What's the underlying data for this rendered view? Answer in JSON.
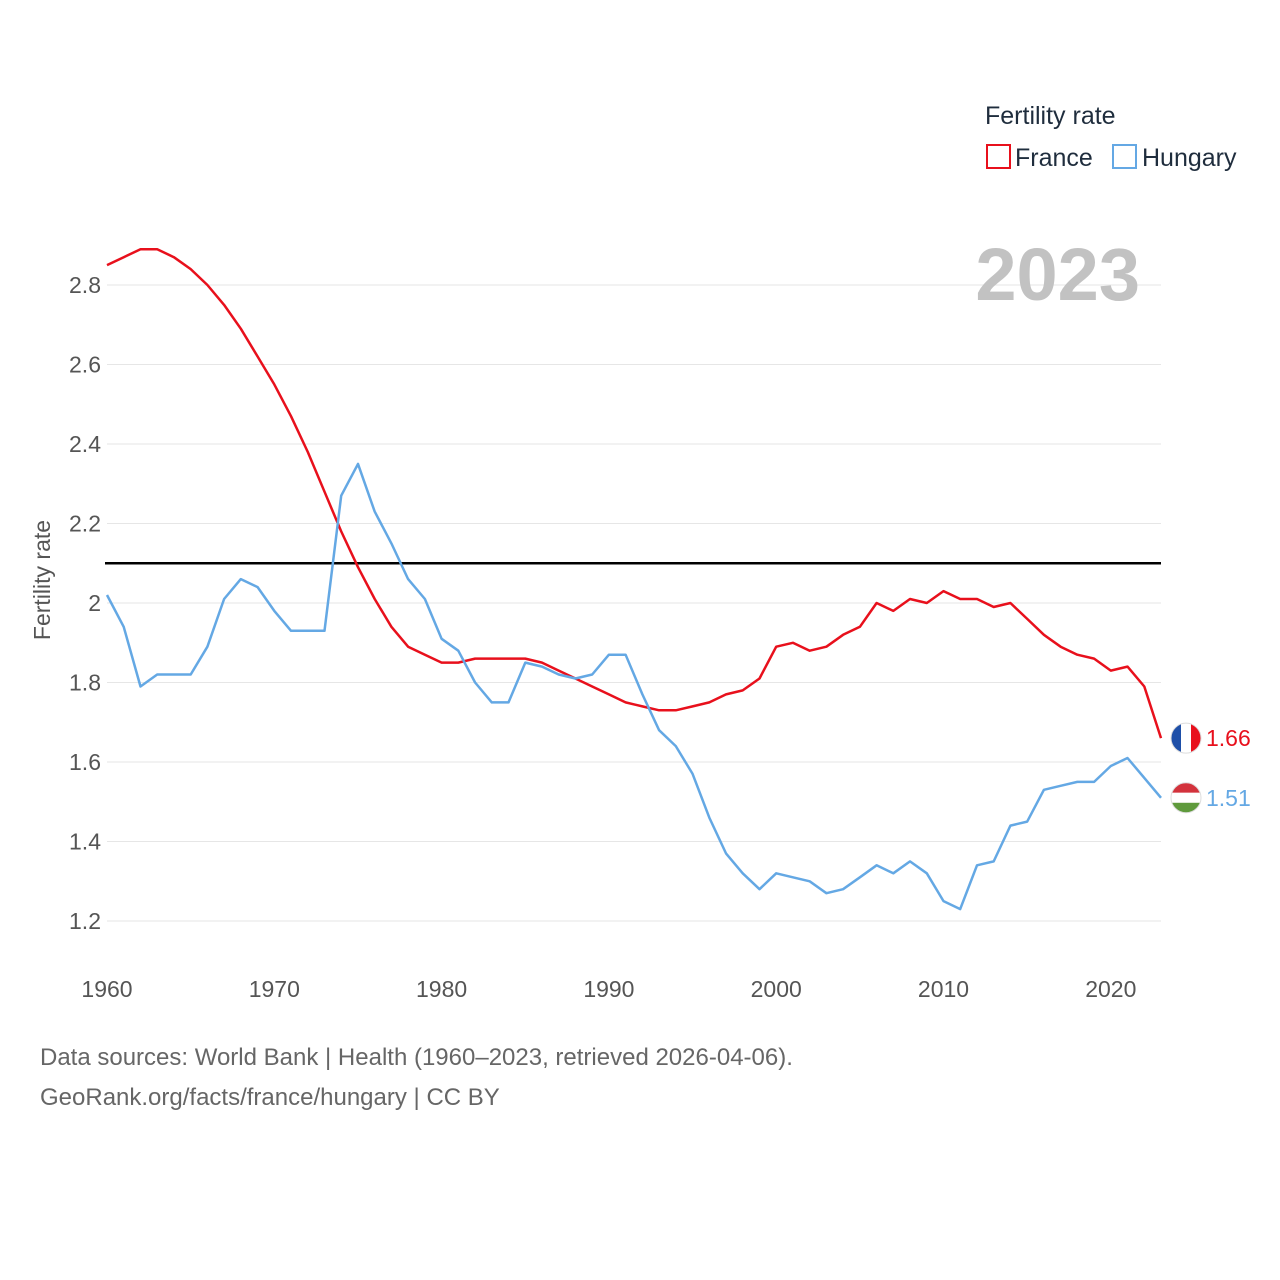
{
  "chart_data": {
    "type": "line",
    "title": "",
    "ylabel": "Fertility rate",
    "xlabel": "",
    "ylim": [
      1.1,
      2.95
    ],
    "xlim": [
      1960,
      2023
    ],
    "yticks": [
      1.2,
      1.4,
      1.6,
      1.8,
      2,
      2.2,
      2.4,
      2.6,
      2.8
    ],
    "ytick_labels": [
      "1.2",
      "1.4",
      "1.6",
      "1.8",
      "2",
      "2.2",
      "2.4",
      "2.6",
      "2.8"
    ],
    "xticks": [
      1960,
      1970,
      1980,
      1990,
      2000,
      2010,
      2020
    ],
    "xtick_labels": [
      "1960",
      "1970",
      "1980",
      "1990",
      "2000",
      "2010",
      "2020"
    ],
    "legend_title": "Fertility rate",
    "legend_position": "top-right",
    "current_year": "2023",
    "reference_line": 2.1,
    "series": [
      {
        "name": "France",
        "color": "#e8101c",
        "flag": "france-flag",
        "end_label": "1.66",
        "x": [
          1960,
          1961,
          1962,
          1963,
          1964,
          1965,
          1966,
          1967,
          1968,
          1969,
          1970,
          1971,
          1972,
          1973,
          1974,
          1975,
          1976,
          1977,
          1978,
          1979,
          1980,
          1981,
          1982,
          1983,
          1984,
          1985,
          1986,
          1987,
          1988,
          1989,
          1990,
          1991,
          1992,
          1993,
          1994,
          1995,
          1996,
          1997,
          1998,
          1999,
          2000,
          2001,
          2002,
          2003,
          2004,
          2005,
          2006,
          2007,
          2008,
          2009,
          2010,
          2011,
          2012,
          2013,
          2014,
          2015,
          2016,
          2017,
          2018,
          2019,
          2020,
          2021,
          2022,
          2023
        ],
        "values": [
          2.85,
          2.87,
          2.89,
          2.89,
          2.87,
          2.84,
          2.8,
          2.75,
          2.69,
          2.62,
          2.55,
          2.47,
          2.38,
          2.28,
          2.18,
          2.09,
          2.01,
          1.94,
          1.89,
          1.87,
          1.85,
          1.85,
          1.86,
          1.86,
          1.86,
          1.86,
          1.85,
          1.83,
          1.81,
          1.79,
          1.77,
          1.75,
          1.74,
          1.73,
          1.73,
          1.74,
          1.75,
          1.77,
          1.78,
          1.81,
          1.89,
          1.9,
          1.88,
          1.89,
          1.92,
          1.94,
          2.0,
          1.98,
          2.01,
          2.0,
          2.03,
          2.01,
          2.01,
          1.99,
          2.0,
          1.96,
          1.92,
          1.89,
          1.87,
          1.86,
          1.83,
          1.84,
          1.79,
          1.66
        ]
      },
      {
        "name": "Hungary",
        "color": "#64a8e4",
        "flag": "hungary-flag",
        "end_label": "1.51",
        "x": [
          1960,
          1961,
          1962,
          1963,
          1964,
          1965,
          1966,
          1967,
          1968,
          1969,
          1970,
          1971,
          1972,
          1973,
          1974,
          1975,
          1976,
          1977,
          1978,
          1979,
          1980,
          1981,
          1982,
          1983,
          1984,
          1985,
          1986,
          1987,
          1988,
          1989,
          1990,
          1991,
          1992,
          1993,
          1994,
          1995,
          1996,
          1997,
          1998,
          1999,
          2000,
          2001,
          2002,
          2003,
          2004,
          2005,
          2006,
          2007,
          2008,
          2009,
          2010,
          2011,
          2012,
          2013,
          2014,
          2015,
          2016,
          2017,
          2018,
          2019,
          2020,
          2021,
          2022,
          2023
        ],
        "values": [
          2.02,
          1.94,
          1.79,
          1.82,
          1.82,
          1.82,
          1.89,
          2.01,
          2.06,
          2.04,
          1.98,
          1.93,
          1.93,
          1.93,
          2.27,
          2.35,
          2.23,
          2.15,
          2.06,
          2.01,
          1.91,
          1.88,
          1.8,
          1.75,
          1.75,
          1.85,
          1.84,
          1.82,
          1.81,
          1.82,
          1.87,
          1.87,
          1.77,
          1.68,
          1.64,
          1.57,
          1.46,
          1.37,
          1.32,
          1.28,
          1.32,
          1.31,
          1.3,
          1.27,
          1.28,
          1.31,
          1.34,
          1.32,
          1.35,
          1.32,
          1.25,
          1.23,
          1.34,
          1.35,
          1.44,
          1.45,
          1.53,
          1.54,
          1.55,
          1.55,
          1.59,
          1.61,
          1.56,
          1.51
        ]
      }
    ]
  },
  "footer": {
    "line1": "Data sources: World Bank | Health (1960–2023, retrieved 2026-04-06).",
    "line2": "GeoRank.org/facts/france/hungary | CC BY"
  }
}
